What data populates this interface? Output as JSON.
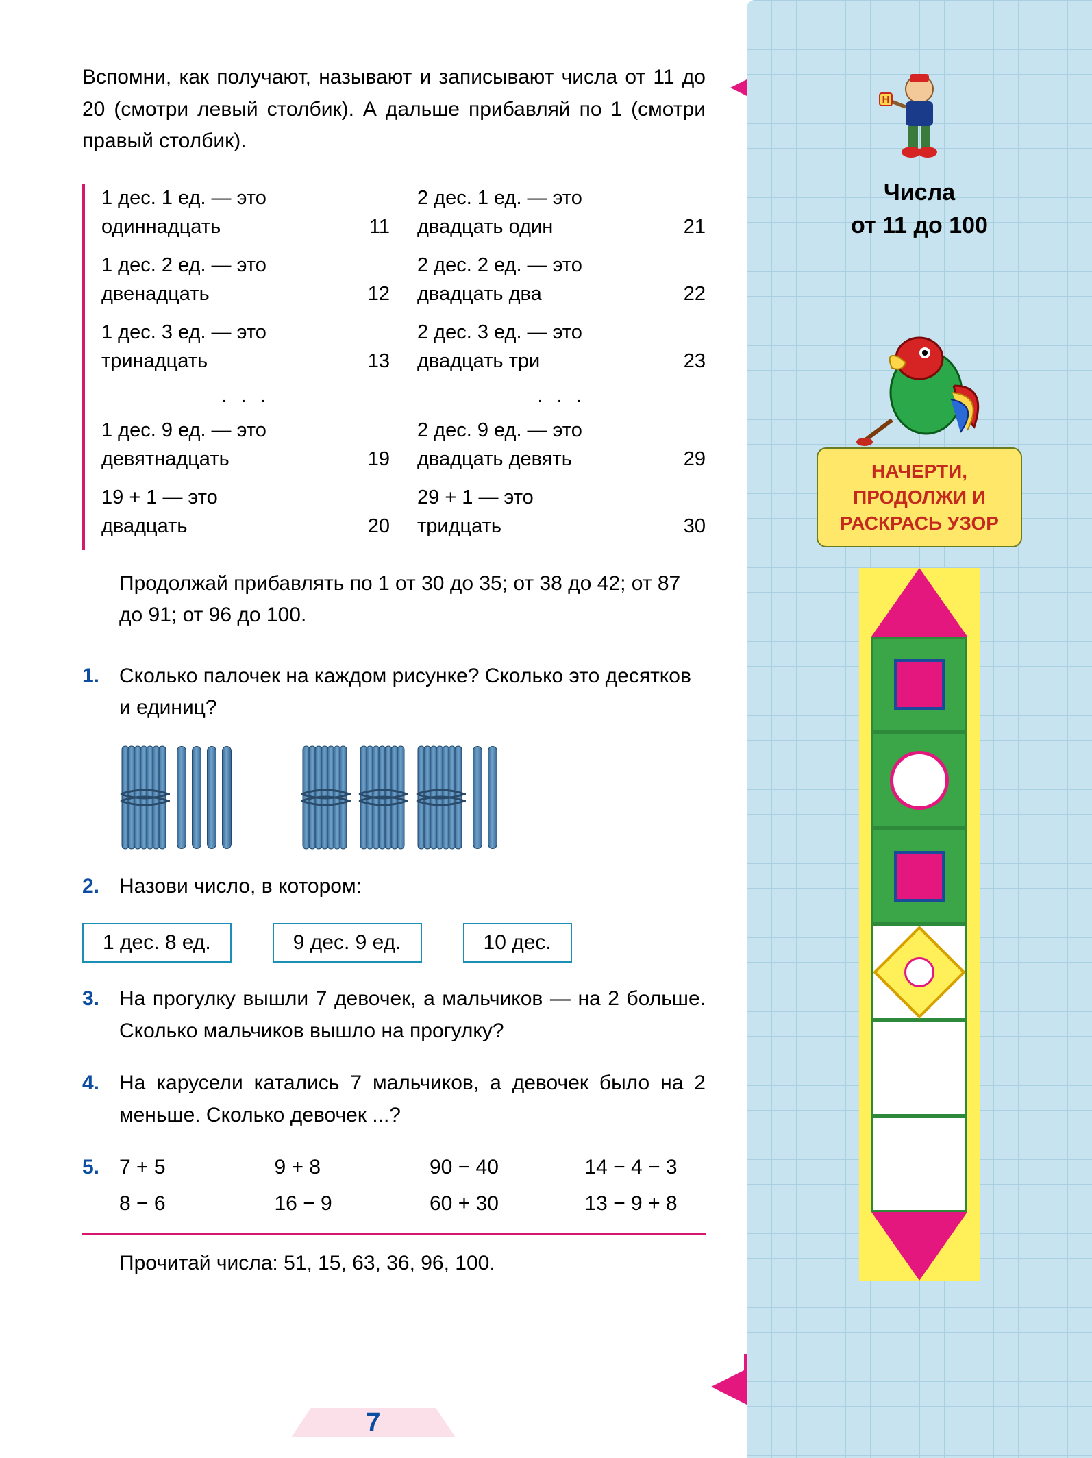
{
  "colors": {
    "accent_pink": "#d6176e",
    "accent_magenta": "#e3177d",
    "task_blue": "#0d4da1",
    "box_border": "#1b8fb5",
    "sidebar_bg": "#c7e3ef",
    "grid_line": "#a8d0e0",
    "yellow": "#ffe76a",
    "pattern_yellow": "#fff05a",
    "pattern_green": "#3aa648",
    "text": "#000000"
  },
  "intro": "Вспомни, как получают, называют и записывают числа от 11 до 20 (смотри левый столбик). А дальше прибавляй по 1 (смотри правый столбик).",
  "left_col": [
    {
      "l1": "1 дес. 1 ед. — это",
      "l2a": "одиннадцать",
      "l2b": "11"
    },
    {
      "l1": "1 дес. 2 ед. — это",
      "l2a": "двенадцать",
      "l2b": "12"
    },
    {
      "l1": "1 дес. 3 ед. — это",
      "l2a": "тринадцать",
      "l2b": "13"
    },
    {
      "dots": ". . ."
    },
    {
      "l1": "1 дес. 9 ед. — это",
      "l2a": "девятнадцать",
      "l2b": "19"
    },
    {
      "l1": "19 + 1 — это",
      "l2a": "двадцать",
      "l2b": "20"
    }
  ],
  "right_col": [
    {
      "l1": "2 дес. 1 ед. — это",
      "l2a": "двадцать один",
      "l2b": "21"
    },
    {
      "l1": "2 дес. 2 ед. — это",
      "l2a": "двадцать два",
      "l2b": "22"
    },
    {
      "l1": "2 дес. 3 ед. — это",
      "l2a": "двадцать три",
      "l2b": "23"
    },
    {
      "dots": ". . ."
    },
    {
      "l1": "2 дес. 9 ед. — это",
      "l2a": "двадцать девять",
      "l2b": "29"
    },
    {
      "l1": "29 + 1 — это",
      "l2a": "тридцать",
      "l2b": "30"
    }
  ],
  "continue_text": "Продолжай прибавлять по 1 от 30 до 35; от 38 до 42; от 87 до 91; от 96 до 100.",
  "tasks": {
    "t1": {
      "num": "1.",
      "text": "Сколько палочек на каждом рисунке? Сколько это десятков и единиц?",
      "groups": [
        {
          "bundles": 1,
          "loose": 4
        },
        {
          "bundles": 3,
          "loose": 2
        }
      ]
    },
    "t2": {
      "num": "2.",
      "text": "Назови число, в котором:",
      "boxes": [
        "1 дес. 8 ед.",
        "9 дес. 9 ед.",
        "10 дес."
      ]
    },
    "t3": {
      "num": "3.",
      "text": "На прогулку вышли 7 девочек, а мальчиков — на 2 больше. Сколько мальчиков вышло на прогулку?"
    },
    "t4": {
      "num": "4.",
      "text": "На карусели катались 7 мальчиков, а девочек было на 2 меньше. Сколько девочек ...?"
    },
    "t5": {
      "num": "5.",
      "cells": [
        "7 + 5",
        "9 + 8",
        "90 − 40",
        "14 − 4 − 3",
        "8 − 6",
        "16 − 9",
        "60 + 30",
        "13 − 9 + 8"
      ]
    }
  },
  "read_line": "Прочитай числа: 51, 15, 63, 36, 96, 100.",
  "page_number": "7",
  "q_mark": "?",
  "sidebar": {
    "badge": "Н",
    "title_l1": "Числа",
    "title_l2": "от 11 до 100",
    "yellow_box": "НАЧЕРТИ, ПРОДОЛЖИ И РАСКРАСЬ УЗОР",
    "pattern": [
      {
        "type": "triangle-up",
        "color": "#e3177d"
      },
      {
        "type": "square-in-green",
        "bg": "#3aa648",
        "fill": "#e3177d"
      },
      {
        "type": "circle-in-green",
        "bg": "#3aa648",
        "fill": "#ffffff"
      },
      {
        "type": "square-in-green",
        "bg": "#3aa648",
        "fill": "#e3177d"
      },
      {
        "type": "diamond-white",
        "bg": "#ffffff",
        "fill": "#fff05a"
      },
      {
        "type": "empty",
        "bg": "#ffffff"
      },
      {
        "type": "empty",
        "bg": "#ffffff"
      },
      {
        "type": "triangle-down",
        "color": "#e3177d"
      }
    ]
  }
}
